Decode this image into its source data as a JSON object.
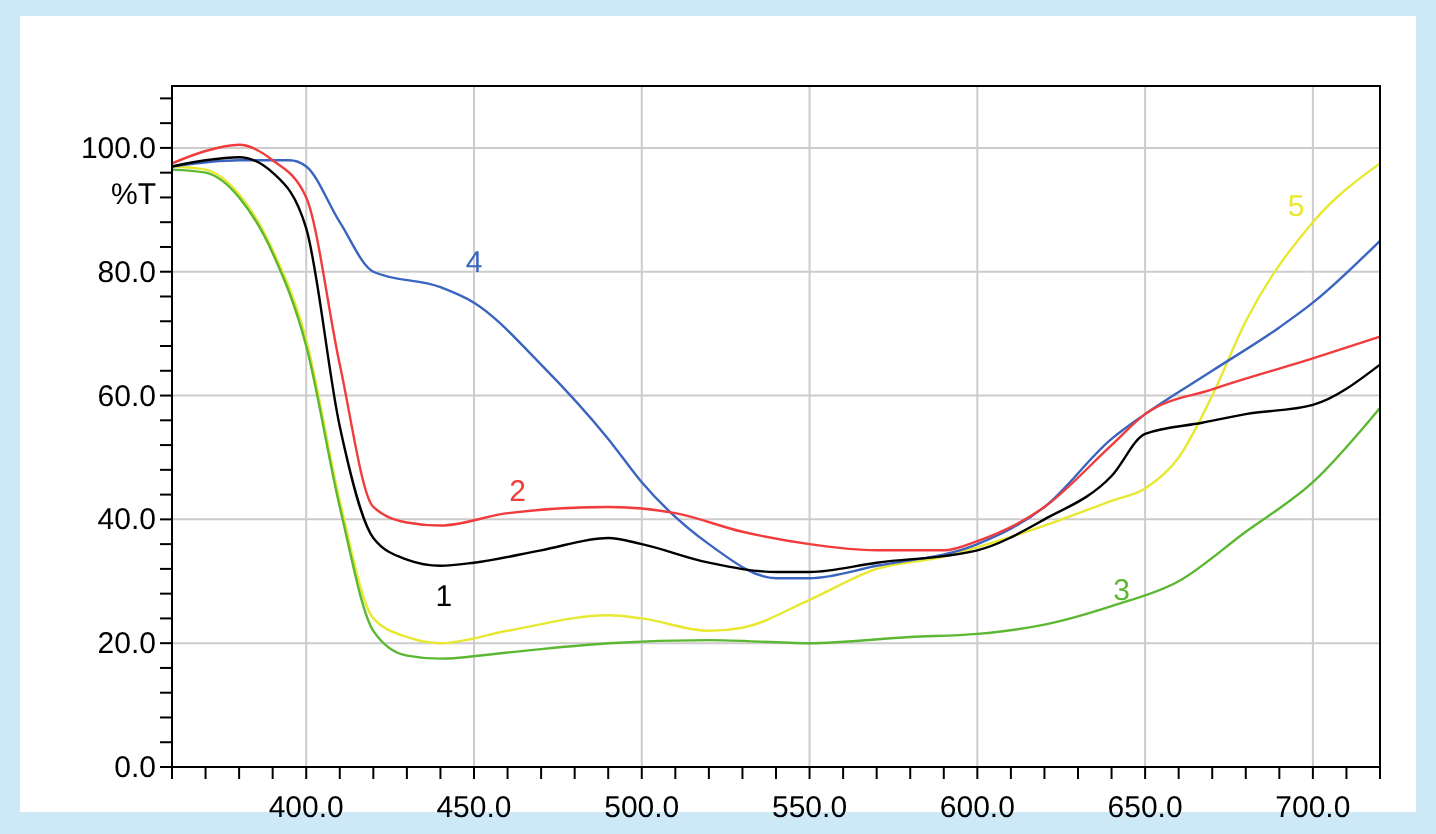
{
  "chart_data": {
    "type": "line",
    "ylabel": "%T",
    "xlim": [
      360,
      720
    ],
    "ylim": [
      0,
      110
    ],
    "xticks": [
      {
        "value": 360,
        "label": null
      },
      {
        "value": 370,
        "label": null
      },
      {
        "value": 380,
        "label": null
      },
      {
        "value": 390,
        "label": null
      },
      {
        "value": 400,
        "label": "400.0"
      },
      {
        "value": 410,
        "label": null
      },
      {
        "value": 420,
        "label": null
      },
      {
        "value": 430,
        "label": null
      },
      {
        "value": 440,
        "label": null
      },
      {
        "value": 450,
        "label": "450.0"
      },
      {
        "value": 460,
        "label": null
      },
      {
        "value": 470,
        "label": null
      },
      {
        "value": 480,
        "label": null
      },
      {
        "value": 490,
        "label": null
      },
      {
        "value": 500,
        "label": "500.0"
      },
      {
        "value": 510,
        "label": null
      },
      {
        "value": 520,
        "label": null
      },
      {
        "value": 530,
        "label": null
      },
      {
        "value": 540,
        "label": null
      },
      {
        "value": 550,
        "label": "550.0"
      },
      {
        "value": 560,
        "label": null
      },
      {
        "value": 570,
        "label": null
      },
      {
        "value": 580,
        "label": null
      },
      {
        "value": 590,
        "label": null
      },
      {
        "value": 600,
        "label": "600.0"
      },
      {
        "value": 610,
        "label": null
      },
      {
        "value": 620,
        "label": null
      },
      {
        "value": 630,
        "label": null
      },
      {
        "value": 640,
        "label": null
      },
      {
        "value": 650,
        "label": "650.0"
      },
      {
        "value": 660,
        "label": null
      },
      {
        "value": 670,
        "label": null
      },
      {
        "value": 680,
        "label": null
      },
      {
        "value": 690,
        "label": null
      },
      {
        "value": 700,
        "label": "700.0"
      },
      {
        "value": 710,
        "label": null
      },
      {
        "value": 720,
        "label": null
      }
    ],
    "yticks": [
      {
        "value": 0,
        "label": "0.0"
      },
      {
        "value": 4,
        "label": null
      },
      {
        "value": 8,
        "label": null
      },
      {
        "value": 12,
        "label": null
      },
      {
        "value": 16,
        "label": null
      },
      {
        "value": 20,
        "label": "20.0"
      },
      {
        "value": 24,
        "label": null
      },
      {
        "value": 28,
        "label": null
      },
      {
        "value": 32,
        "label": null
      },
      {
        "value": 36,
        "label": null
      },
      {
        "value": 40,
        "label": "40.0"
      },
      {
        "value": 44,
        "label": null
      },
      {
        "value": 48,
        "label": null
      },
      {
        "value": 52,
        "label": null
      },
      {
        "value": 56,
        "label": null
      },
      {
        "value": 60,
        "label": "60.0"
      },
      {
        "value": 64,
        "label": null
      },
      {
        "value": 68,
        "label": null
      },
      {
        "value": 72,
        "label": null
      },
      {
        "value": 76,
        "label": null
      },
      {
        "value": 80,
        "label": "80.0"
      },
      {
        "value": 84,
        "label": null
      },
      {
        "value": 88,
        "label": null
      },
      {
        "value": 92,
        "label": null
      },
      {
        "value": 96,
        "label": null
      },
      {
        "value": 100,
        "label": "100.0"
      },
      {
        "value": 104,
        "label": null
      },
      {
        "value": 108,
        "label": null
      }
    ],
    "grid": true,
    "marker": "none",
    "line_style": "solid",
    "series": [
      {
        "name": "1",
        "color": "#000000",
        "x": [
          360,
          370,
          380,
          390,
          400,
          410,
          420,
          430,
          440,
          450,
          470,
          490,
          500,
          520,
          540,
          550,
          570,
          600,
          620,
          640,
          650,
          667,
          680,
          700,
          720
        ],
        "values": [
          97,
          98,
          98.5,
          96,
          87,
          55,
          37,
          33.5,
          32.5,
          33,
          35,
          37,
          36,
          33,
          31.5,
          31.5,
          33,
          35,
          40,
          47,
          53.8,
          55.6,
          57,
          58.5,
          65
        ]
      },
      {
        "name": "2",
        "color": "#f03c3c",
        "x": [
          360,
          370,
          380,
          390,
          400,
          410,
          420,
          430,
          440,
          460,
          490,
          510,
          530,
          550,
          570,
          590,
          600,
          620,
          640,
          650,
          670,
          700,
          720
        ],
        "values": [
          97.5,
          99.5,
          100.5,
          98,
          92,
          65,
          42,
          39.5,
          39,
          41,
          42,
          41,
          38,
          36,
          35,
          35,
          36.5,
          42,
          52,
          57,
          61,
          66,
          69.5
        ]
      },
      {
        "name": "3",
        "color": "#5cb832",
        "x": [
          360,
          370,
          380,
          390,
          400,
          410,
          420,
          430,
          440,
          460,
          490,
          520,
          550,
          580,
          600,
          620,
          640,
          660,
          680,
          700,
          720
        ],
        "values": [
          96.5,
          96,
          92,
          83,
          68,
          42,
          22,
          18,
          17.5,
          18.5,
          20,
          20.5,
          20,
          21,
          21.5,
          23,
          26,
          30,
          38,
          46,
          58
        ]
      },
      {
        "name": "4",
        "color": "#3a64c0",
        "x": [
          360,
          380,
          395,
          400,
          410,
          420,
          440,
          450,
          470,
          490,
          500,
          520,
          540,
          550,
          570,
          600,
          620,
          640,
          650,
          670,
          690,
          700,
          720
        ],
        "values": [
          97,
          98,
          98,
          97,
          88,
          80,
          77.5,
          75,
          65,
          53,
          46,
          36,
          30.5,
          30.5,
          32.5,
          36,
          42,
          53,
          57,
          64,
          71,
          75,
          85
        ]
      },
      {
        "name": "5",
        "color": "#e8e832",
        "x": [
          360,
          370,
          380,
          390,
          400,
          410,
          420,
          430,
          440,
          460,
          490,
          500,
          520,
          530,
          550,
          570,
          590,
          600,
          620,
          640,
          650,
          660,
          670,
          680,
          700,
          720
        ],
        "values": [
          97,
          96.5,
          92.5,
          83.5,
          69,
          43,
          24,
          21,
          20,
          22,
          24.5,
          24,
          22,
          22.5,
          27,
          32,
          34,
          35.5,
          39,
          43,
          45,
          50,
          60,
          72,
          88,
          97.5
        ]
      }
    ]
  }
}
